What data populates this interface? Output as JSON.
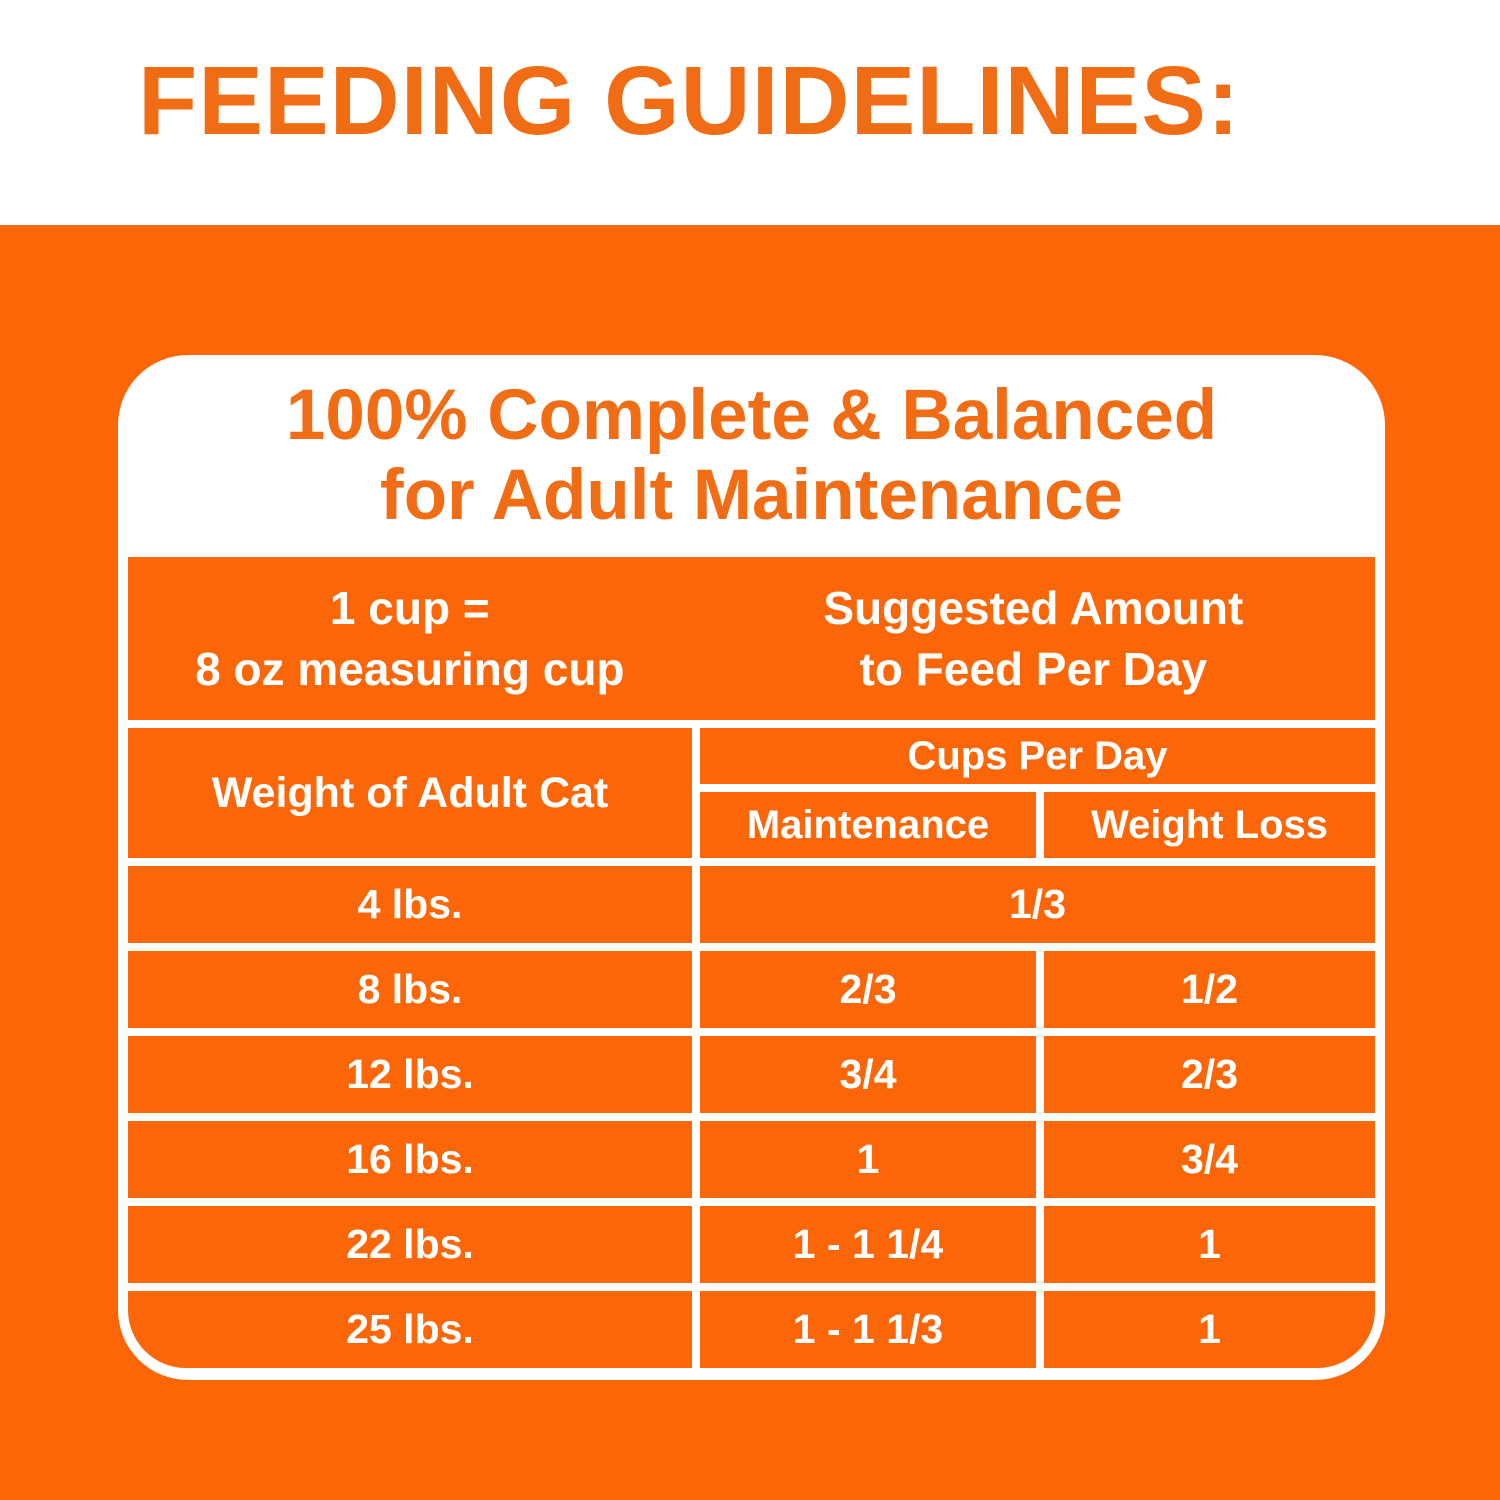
{
  "header": {
    "title": "FEEDING GUIDELINES:"
  },
  "card": {
    "heading_line1": "100% Complete & Balanced",
    "heading_line2": "for Adult Maintenance"
  },
  "table": {
    "cup_note_line1": "1 cup =",
    "cup_note_line2": "8 oz measuring cup",
    "suggested_line1": "Suggested Amount",
    "suggested_line2": "to Feed Per Day",
    "weight_header": "Weight of Adult Cat",
    "cups_per_day_header": "Cups Per Day",
    "maintenance_header": "Maintenance",
    "weight_loss_header": "Weight Loss",
    "rows": [
      {
        "weight": "4 lbs.",
        "combined": "1/3"
      },
      {
        "weight": "8 lbs.",
        "maintenance": "2/3",
        "weight_loss": "1/2"
      },
      {
        "weight": "12 lbs.",
        "maintenance": "3/4",
        "weight_loss": "2/3"
      },
      {
        "weight": "16 lbs.",
        "maintenance": "1",
        "weight_loss": "3/4"
      },
      {
        "weight": "22 lbs.",
        "maintenance": "1 - 1 1/4",
        "weight_loss": "1"
      },
      {
        "weight": "25 lbs.",
        "maintenance": "1 - 1 1/3",
        "weight_loss": "1"
      }
    ]
  },
  "colors": {
    "orange_background": "#FC6606",
    "orange_cell": "#FB6708",
    "orange_heading_text": "#F16D15",
    "text_on_orange": "#FFFFFF",
    "card_background": "#FFFFFF"
  },
  "chart_data": {
    "type": "table",
    "title": "Feeding Guidelines - 100% Complete & Balanced for Adult Maintenance",
    "note": "1 cup = 8 oz measuring cup; amounts are suggested cups to feed per day",
    "columns": [
      "Weight of Adult Cat",
      "Maintenance (Cups Per Day)",
      "Weight Loss (Cups Per Day)"
    ],
    "rows": [
      [
        "4 lbs.",
        "1/3",
        "1/3"
      ],
      [
        "8 lbs.",
        "2/3",
        "1/2"
      ],
      [
        "12 lbs.",
        "3/4",
        "2/3"
      ],
      [
        "16 lbs.",
        "1",
        "3/4"
      ],
      [
        "22 lbs.",
        "1 - 1 1/4",
        "1"
      ],
      [
        "25 lbs.",
        "1 - 1 1/3",
        "1"
      ]
    ]
  }
}
